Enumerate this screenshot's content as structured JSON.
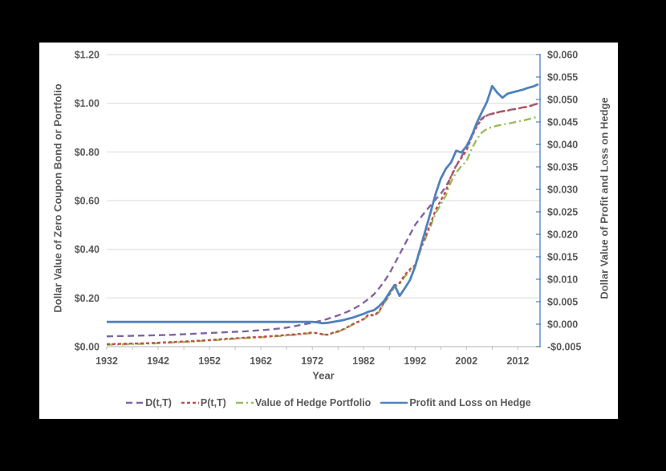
{
  "page": {
    "background": "#000000"
  },
  "panel": {
    "background": "#FFFFFF"
  },
  "chart_data": {
    "type": "line",
    "title": "",
    "xlabel": "Year",
    "x_start": 1932,
    "x_end": 2016,
    "x_tick_labels": [
      "1932",
      "1942",
      "1952",
      "1962",
      "1972",
      "1982",
      "1992",
      "2002",
      "2012"
    ],
    "x_minor_tick_step": 5,
    "grid": "horizontal",
    "gridline_color": "#D9D9D9",
    "axis_line_color": "#BFBFBF",
    "text_color": "#595959",
    "legend_position": "bottom",
    "left_axis": {
      "title": "Dollar Value of Zero Coupon Bond or Portfolio",
      "min": 0,
      "max": 1.2,
      "tick_values": [
        0,
        0.2,
        0.4,
        0.6,
        0.8,
        1.0,
        1.2
      ],
      "tick_labels": [
        "$0.00",
        "$0.20",
        "$0.40",
        "$0.60",
        "$0.80",
        "$1.00",
        "$1.20"
      ],
      "color": "#595959"
    },
    "right_axis": {
      "title": "Dollar Value of Profit and Loss on Hedge",
      "min": -0.005,
      "max": 0.06,
      "tick_values": [
        -0.005,
        0,
        0.005,
        0.01,
        0.015,
        0.02,
        0.025,
        0.03,
        0.035,
        0.04,
        0.045,
        0.05,
        0.055,
        0.06
      ],
      "tick_labels": [
        "-$0.005",
        "$0.000",
        "$0.005",
        "$0.010",
        "$0.015",
        "$0.020",
        "$0.025",
        "$0.030",
        "$0.035",
        "$0.040",
        "$0.045",
        "$0.050",
        "$0.055",
        "$0.060"
      ],
      "color": "#4F81BD"
    },
    "series": [
      {
        "name": "D(t,T)",
        "axis": "left",
        "color": "#8064A2",
        "style": "dashed",
        "values": [
          0.042,
          0.0425,
          0.043,
          0.0435,
          0.044,
          0.0445,
          0.045,
          0.0455,
          0.046,
          0.0465,
          0.047,
          0.0475,
          0.048,
          0.049,
          0.05,
          0.051,
          0.052,
          0.053,
          0.054,
          0.055,
          0.056,
          0.057,
          0.058,
          0.059,
          0.06,
          0.061,
          0.062,
          0.063,
          0.0645,
          0.066,
          0.0675,
          0.069,
          0.071,
          0.073,
          0.0755,
          0.078,
          0.082,
          0.086,
          0.09,
          0.094,
          0.098,
          0.103,
          0.108,
          0.114,
          0.121,
          0.128,
          0.136,
          0.145,
          0.155,
          0.167,
          0.181,
          0.197,
          0.215,
          0.24,
          0.268,
          0.3,
          0.34,
          0.38,
          0.42,
          0.46,
          0.5,
          0.528,
          0.555,
          0.58,
          0.605,
          0.628,
          0.658,
          0.698,
          0.742,
          0.78,
          0.815,
          0.868,
          0.91,
          0.938,
          0.952,
          0.957,
          0.963,
          0.967,
          0.971,
          0.975,
          0.979,
          0.983,
          0.987,
          0.993,
          1.0
        ]
      },
      {
        "name": "P(t,T)",
        "axis": "left",
        "color": "#C0504D",
        "style": "short-dashed",
        "values": [
          0.01,
          0.0105,
          0.011,
          0.0115,
          0.012,
          0.0125,
          0.013,
          0.0135,
          0.014,
          0.015,
          0.016,
          0.017,
          0.018,
          0.019,
          0.02,
          0.021,
          0.022,
          0.023,
          0.0245,
          0.026,
          0.027,
          0.0285,
          0.03,
          0.0315,
          0.033,
          0.034,
          0.0355,
          0.037,
          0.038,
          0.039,
          0.04,
          0.0415,
          0.043,
          0.0445,
          0.046,
          0.048,
          0.0495,
          0.051,
          0.053,
          0.0555,
          0.058,
          0.0555,
          0.051,
          0.049,
          0.057,
          0.063,
          0.071,
          0.082,
          0.094,
          0.103,
          0.114,
          0.133,
          0.128,
          0.145,
          0.183,
          0.215,
          0.252,
          0.262,
          0.295,
          0.318,
          0.335,
          0.4,
          0.452,
          0.505,
          0.562,
          0.6,
          0.64,
          0.7,
          0.745,
          0.775,
          0.805,
          0.86,
          0.905,
          0.935,
          0.95,
          0.956,
          0.962,
          0.966,
          0.97,
          0.974,
          0.978,
          0.982,
          0.986,
          0.992,
          1.0
        ]
      },
      {
        "name": "Value of Hedge Portfolio",
        "axis": "left",
        "color": "#9BBB59",
        "style": "dash-dot",
        "values": [
          0.008,
          0.0085,
          0.009,
          0.0095,
          0.01,
          0.0105,
          0.011,
          0.0115,
          0.012,
          0.013,
          0.014,
          0.015,
          0.016,
          0.017,
          0.018,
          0.019,
          0.02,
          0.021,
          0.0225,
          0.024,
          0.025,
          0.0265,
          0.028,
          0.0295,
          0.031,
          0.032,
          0.0335,
          0.035,
          0.036,
          0.037,
          0.038,
          0.0395,
          0.041,
          0.0425,
          0.044,
          0.046,
          0.0475,
          0.049,
          0.051,
          0.0535,
          0.056,
          0.054,
          0.05,
          0.048,
          0.055,
          0.061,
          0.069,
          0.08,
          0.092,
          0.101,
          0.112,
          0.13,
          0.126,
          0.142,
          0.179,
          0.21,
          0.246,
          0.256,
          0.288,
          0.31,
          0.328,
          0.392,
          0.443,
          0.494,
          0.548,
          0.584,
          0.622,
          0.678,
          0.715,
          0.742,
          0.762,
          0.812,
          0.852,
          0.88,
          0.895,
          0.902,
          0.908,
          0.912,
          0.916,
          0.92,
          0.925,
          0.929,
          0.934,
          0.94,
          0.945
        ]
      },
      {
        "name": "Profit and Loss on Hedge",
        "axis": "right",
        "color": "#4F81BD",
        "style": "solid",
        "values": [
          0.0005,
          0.0005,
          0.0005,
          0.0005,
          0.0005,
          0.0005,
          0.0005,
          0.0005,
          0.0005,
          0.0005,
          0.0005,
          0.0005,
          0.0005,
          0.0005,
          0.0005,
          0.0005,
          0.0005,
          0.0005,
          0.0005,
          0.0005,
          0.0005,
          0.0005,
          0.0005,
          0.0005,
          0.0005,
          0.0005,
          0.0005,
          0.0005,
          0.0005,
          0.0005,
          0.0005,
          0.0005,
          0.0005,
          0.0005,
          0.0005,
          0.0005,
          0.0005,
          0.0005,
          0.0005,
          0.0005,
          0.0005,
          0.0004,
          0.0002,
          0.0003,
          0.0005,
          0.0007,
          0.0009,
          0.0012,
          0.0015,
          0.0019,
          0.0023,
          0.0028,
          0.0031,
          0.004,
          0.0052,
          0.007,
          0.0087,
          0.0063,
          0.008,
          0.0098,
          0.0128,
          0.0168,
          0.0208,
          0.0248,
          0.029,
          0.0324,
          0.0346,
          0.036,
          0.0386,
          0.0382,
          0.0396,
          0.0418,
          0.0448,
          0.0472,
          0.0495,
          0.053,
          0.0515,
          0.0504,
          0.0513,
          0.0516,
          0.0519,
          0.0522,
          0.0526,
          0.0529,
          0.0534
        ]
      }
    ]
  }
}
